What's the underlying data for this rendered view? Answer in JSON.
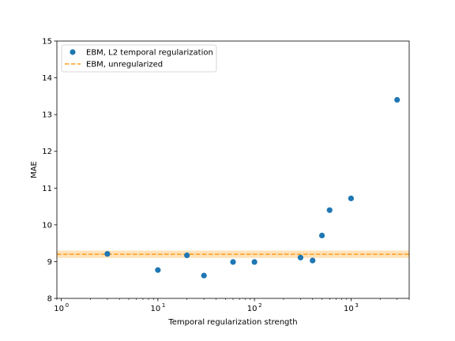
{
  "chart_data": {
    "type": "scatter",
    "xlabel": "Temporal regularization strength",
    "ylabel": "MAE",
    "xscale": "log",
    "xlim": [
      0.9,
      4000
    ],
    "ylim": [
      8,
      15
    ],
    "x_ticks": [
      {
        "value": 1,
        "base": "10",
        "exp": "0"
      },
      {
        "value": 10,
        "base": "10",
        "exp": "1"
      },
      {
        "value": 100,
        "base": "10",
        "exp": "2"
      },
      {
        "value": 1000,
        "base": "10",
        "exp": "3"
      }
    ],
    "y_ticks": [
      "8",
      "9",
      "10",
      "11",
      "12",
      "13",
      "14",
      "15"
    ],
    "legend_position": "upper-left",
    "series": [
      {
        "name": "EBM, L2 temporal regularization",
        "kind": "scatter",
        "color": "#1f77b4",
        "points": [
          {
            "x": 3,
            "y": 9.21
          },
          {
            "x": 10,
            "y": 8.77
          },
          {
            "x": 20,
            "y": 9.17
          },
          {
            "x": 30,
            "y": 8.62
          },
          {
            "x": 60,
            "y": 8.99
          },
          {
            "x": 100,
            "y": 8.99
          },
          {
            "x": 300,
            "y": 9.11
          },
          {
            "x": 400,
            "y": 9.03
          },
          {
            "x": 500,
            "y": 9.71
          },
          {
            "x": 600,
            "y": 10.4
          },
          {
            "x": 1000,
            "y": 10.72
          },
          {
            "x": 3000,
            "y": 13.4
          }
        ]
      },
      {
        "name": "EBM, unregularized",
        "kind": "hline",
        "color": "#ff9f1c",
        "y": 9.2,
        "band": [
          9.1,
          9.3
        ]
      }
    ]
  }
}
